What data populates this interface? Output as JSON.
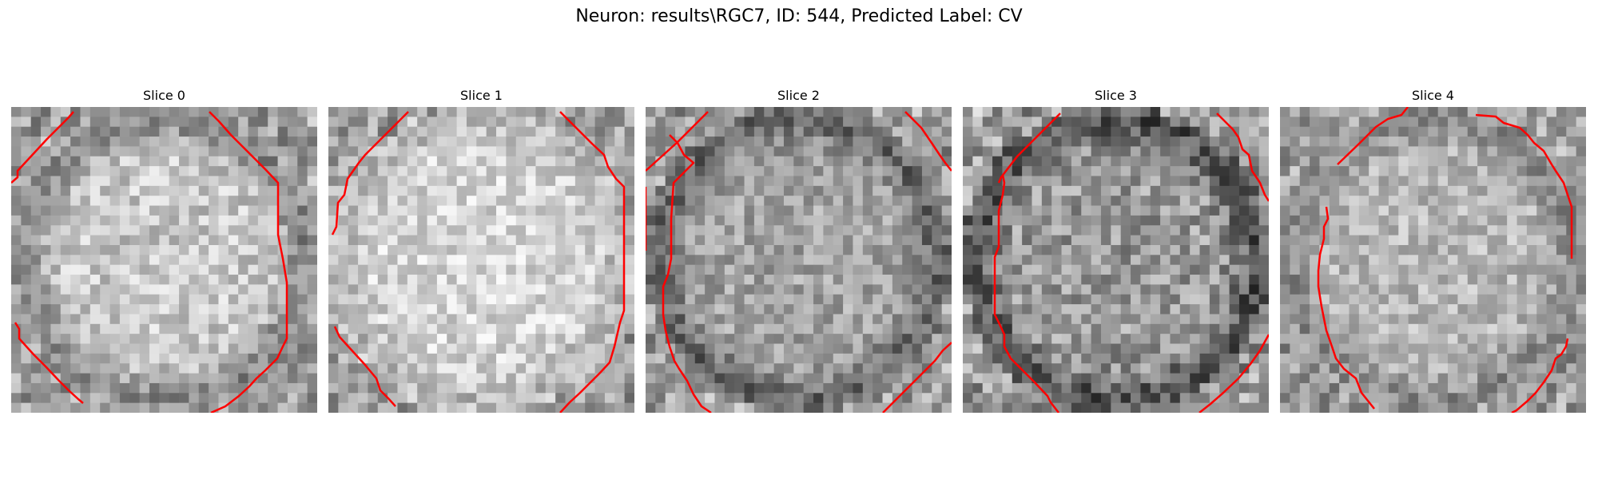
{
  "figure": {
    "title": "Neuron: results\\RGC7, ID: 544, Predicted Label: CV",
    "contour_color": "#ff0000"
  },
  "panels": [
    {
      "title": "Slice 0",
      "seed": 11,
      "center_brightness": 0.78,
      "ring_darkness": 0.25,
      "contrast": 0.16
    },
    {
      "title": "Slice 1",
      "seed": 23,
      "center_brightness": 0.84,
      "ring_darkness": 0.12,
      "contrast": 0.15
    },
    {
      "title": "Slice 2",
      "seed": 37,
      "center_brightness": 0.64,
      "ring_darkness": 0.25,
      "contrast": 0.16
    },
    {
      "title": "Slice 3",
      "seed": 41,
      "center_brightness": 0.6,
      "ring_darkness": 0.28,
      "contrast": 0.2
    },
    {
      "title": "Slice 4",
      "seed": 59,
      "center_brightness": 0.72,
      "ring_darkness": 0.18,
      "contrast": 0.15
    }
  ]
}
